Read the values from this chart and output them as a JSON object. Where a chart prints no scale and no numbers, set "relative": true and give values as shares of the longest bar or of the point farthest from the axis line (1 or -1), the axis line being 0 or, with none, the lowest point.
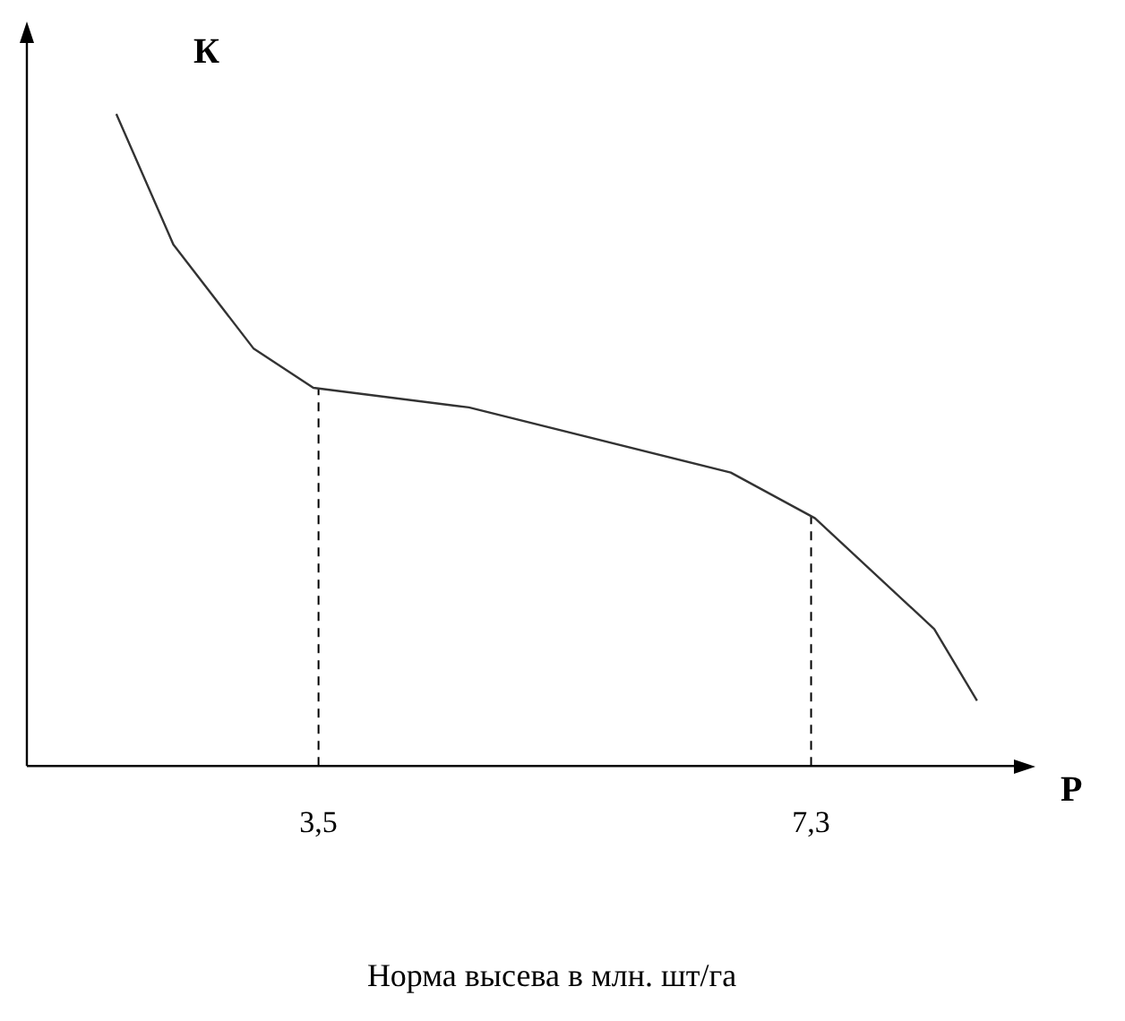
{
  "chart_data": {
    "type": "line",
    "xlabel": "Р",
    "ylabel": "К",
    "annotations": [
      "Норма высева в млн. шт/га"
    ],
    "relative": true,
    "xlim": [
      1.25,
      8.92
    ],
    "xticks": [
      {
        "value": 3.5,
        "label": "3,5"
      },
      {
        "value": 7.3,
        "label": "7,3"
      }
    ],
    "series": [
      {
        "color": "#333333",
        "x": [
          1.94,
          2.38,
          3.0,
          3.46,
          4.66,
          6.68,
          7.33,
          8.25,
          8.58
        ],
        "values": [
          1,
          0.8,
          0.64,
          0.58,
          0.55,
          0.45,
          0.38,
          0.21,
          0.1
        ]
      }
    ],
    "ref_lines": [
      {
        "axis": "x",
        "value": 3.5,
        "line_style": "dashed",
        "color": "#000000"
      },
      {
        "axis": "x",
        "value": 7.3,
        "line_style": "dashed",
        "color": "#000000"
      }
    ],
    "grid": false,
    "legend": false,
    "marker": "none",
    "line_style": "solid"
  }
}
